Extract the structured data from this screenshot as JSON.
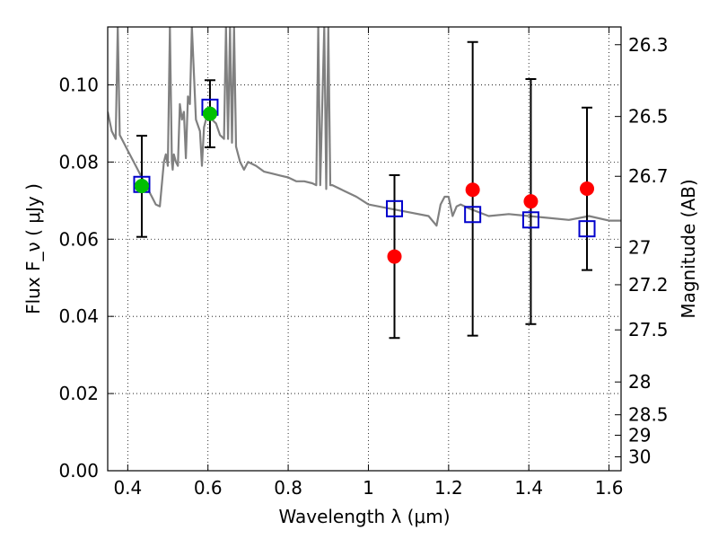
{
  "chart_data": {
    "type": "scatter",
    "title": "",
    "xlabel": "Wavelength  λ (μm)",
    "ylabel": "Flux  F_ν  ( μJy )",
    "ylabel_right": "Magnitude (AB)",
    "xlim": [
      0.35,
      1.63
    ],
    "ylim": [
      0.0,
      0.115
    ],
    "grid": true,
    "x_ticks": [
      0.4,
      0.6,
      0.8,
      1.0,
      1.2,
      1.4,
      1.6
    ],
    "x_tick_labels": [
      "0.4",
      "0.6",
      "0.8",
      "1",
      "1.2",
      "1.4",
      "1.6"
    ],
    "y_ticks": [
      0.0,
      0.02,
      0.04,
      0.06,
      0.08,
      0.1
    ],
    "y_tick_labels": [
      "0.00",
      "0.02",
      "0.04",
      "0.06",
      "0.08",
      "0.10"
    ],
    "right_ticks": [
      {
        "label": "26.3",
        "flux": 0.1104
      },
      {
        "label": "26.5",
        "flux": 0.0918
      },
      {
        "label": "26.7",
        "flux": 0.0763
      },
      {
        "label": "27",
        "flux": 0.0579
      },
      {
        "label": "27.2",
        "flux": 0.0482
      },
      {
        "label": "27.5",
        "flux": 0.0365
      },
      {
        "label": "28",
        "flux": 0.023
      },
      {
        "label": "28.5",
        "flux": 0.0145
      },
      {
        "label": "29",
        "flux": 0.0092
      },
      {
        "label": "30",
        "flux": 0.0036
      }
    ],
    "series": [
      {
        "kind": "line",
        "color": "#808080",
        "x": [
          0.35,
          0.36,
          0.37,
          0.375,
          0.38,
          0.39,
          0.4,
          0.42,
          0.44,
          0.46,
          0.47,
          0.48,
          0.49,
          0.495,
          0.5,
          0.505,
          0.51,
          0.512,
          0.515,
          0.52,
          0.525,
          0.53,
          0.535,
          0.54,
          0.545,
          0.55,
          0.555,
          0.56,
          0.57,
          0.58,
          0.585,
          0.59,
          0.595,
          0.6,
          0.61,
          0.62,
          0.63,
          0.64,
          0.645,
          0.65,
          0.655,
          0.66,
          0.665,
          0.67,
          0.68,
          0.69,
          0.7,
          0.72,
          0.74,
          0.76,
          0.78,
          0.8,
          0.82,
          0.84,
          0.86,
          0.87,
          0.875,
          0.88,
          0.89,
          0.895,
          0.9,
          0.905,
          0.91,
          0.94,
          0.97,
          1.0,
          1.05,
          1.1,
          1.15,
          1.17,
          1.18,
          1.19,
          1.2,
          1.21,
          1.22,
          1.23,
          1.25,
          1.3,
          1.35,
          1.4,
          1.45,
          1.5,
          1.55,
          1.6,
          1.63
        ],
        "y": [
          0.093,
          0.088,
          0.086,
          0.115,
          0.087,
          0.085,
          0.083,
          0.079,
          0.075,
          0.071,
          0.069,
          0.0685,
          0.08,
          0.082,
          0.079,
          0.115,
          0.08,
          0.078,
          0.082,
          0.08,
          0.079,
          0.095,
          0.091,
          0.093,
          0.081,
          0.097,
          0.095,
          0.115,
          0.091,
          0.088,
          0.079,
          0.089,
          0.091,
          0.092,
          0.091,
          0.09,
          0.087,
          0.086,
          0.115,
          0.086,
          0.115,
          0.085,
          0.115,
          0.084,
          0.08,
          0.078,
          0.08,
          0.079,
          0.0775,
          0.077,
          0.0765,
          0.076,
          0.075,
          0.075,
          0.0745,
          0.074,
          0.115,
          0.074,
          0.115,
          0.073,
          0.115,
          0.074,
          0.074,
          0.0725,
          0.071,
          0.069,
          0.068,
          0.067,
          0.066,
          0.0635,
          0.069,
          0.071,
          0.071,
          0.066,
          0.0685,
          0.069,
          0.068,
          0.066,
          0.0665,
          0.066,
          0.0655,
          0.065,
          0.066,
          0.0648,
          0.0648
        ]
      },
      {
        "kind": "open_squares",
        "color": "#0000cc",
        "x": [
          0.435,
          0.605,
          1.065,
          1.26,
          1.405,
          1.545
        ],
        "y": [
          0.0742,
          0.0942,
          0.0679,
          0.0664,
          0.065,
          0.0627
        ]
      },
      {
        "kind": "filled_circles",
        "color": "#00c000",
        "x": [
          0.435,
          0.605
        ],
        "y": [
          0.0738,
          0.0925
        ],
        "err_low": [
          0.0606,
          0.0838
        ],
        "err_high": [
          0.0868,
          0.1012
        ]
      },
      {
        "kind": "filled_circles",
        "color": "#ff0000",
        "x": [
          1.065,
          1.26,
          1.405,
          1.545
        ],
        "y": [
          0.0555,
          0.0728,
          0.0698,
          0.0731
        ],
        "err_low": [
          0.0344,
          0.035,
          0.038,
          0.052
        ],
        "err_high": [
          0.0766,
          0.1111,
          0.1015,
          0.0941
        ]
      }
    ]
  }
}
